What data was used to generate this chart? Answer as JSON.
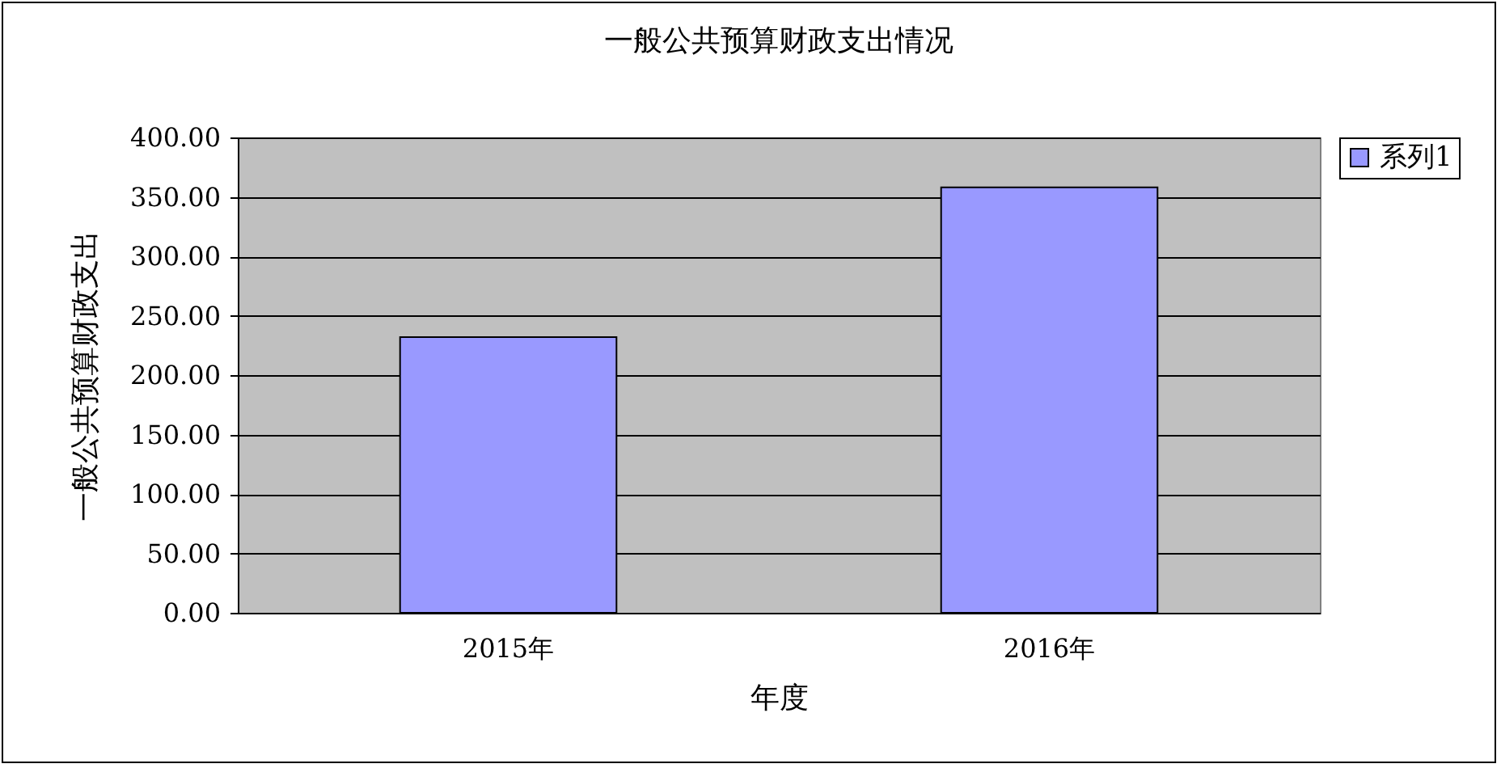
{
  "chart_data": {
    "type": "bar",
    "title": "一般公共预算财政支出情况",
    "xlabel": "年度",
    "ylabel": "一般公共预算财政支出",
    "categories": [
      "2015年",
      "2016年"
    ],
    "series": [
      {
        "name": "系列1",
        "color": "#9999ff",
        "values": [
          232,
          358
        ]
      }
    ],
    "ylim": [
      0,
      400
    ],
    "yticks": [
      {
        "value": 0,
        "label": "0.00"
      },
      {
        "value": 50,
        "label": "50.00"
      },
      {
        "value": 100,
        "label": "100.00"
      },
      {
        "value": 150,
        "label": "150.00"
      },
      {
        "value": 200,
        "label": "200.00"
      },
      {
        "value": 250,
        "label": "250.00"
      },
      {
        "value": 300,
        "label": "300.00"
      },
      {
        "value": 350,
        "label": "350.00"
      },
      {
        "value": 400,
        "label": "400.00"
      }
    ],
    "grid": "y",
    "legend": "right"
  }
}
